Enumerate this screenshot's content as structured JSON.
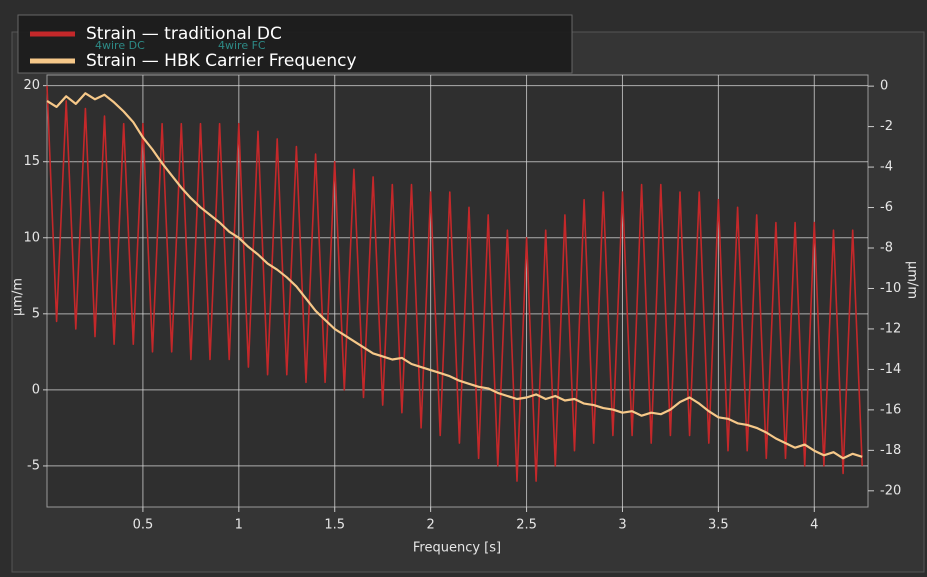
{
  "chart_data": {
    "type": "line",
    "xlabel": "Frequency  [s]",
    "ylabel": "μm/m",
    "y2label": "μm/m",
    "background_labels": [
      "4wire DC",
      "4wire FC"
    ],
    "x": [
      0,
      0.05,
      0.1,
      0.15,
      0.2,
      0.25,
      0.3,
      0.35,
      0.4,
      0.45,
      0.5,
      0.55,
      0.6,
      0.65,
      0.7,
      0.75,
      0.8,
      0.85,
      0.9,
      0.95,
      1.0,
      1.05,
      1.1,
      1.15,
      1.2,
      1.25,
      1.3,
      1.35,
      1.4,
      1.45,
      1.5,
      1.55,
      1.6,
      1.65,
      1.7,
      1.75,
      1.8,
      1.85,
      1.9,
      1.95,
      2.0,
      2.05,
      2.1,
      2.15,
      2.2,
      2.25,
      2.3,
      2.35,
      2.4,
      2.45,
      2.5,
      2.55,
      2.6,
      2.65,
      2.7,
      2.75,
      2.8,
      2.85,
      2.9,
      2.95,
      3.0,
      3.05,
      3.1,
      3.15,
      3.2,
      3.25,
      3.3,
      3.35,
      3.4,
      3.45,
      3.5,
      3.55,
      3.6,
      3.65,
      3.7,
      3.75,
      3.8,
      3.85,
      3.9,
      3.95,
      4.0,
      4.05,
      4.1,
      4.15,
      4.2,
      4.25
    ],
    "series": [
      {
        "name": "Strain — traditional DC",
        "color": "#c4282a",
        "values": [
          20,
          4.5,
          19,
          4,
          18.5,
          3.5,
          18,
          3,
          17.5,
          3,
          17.5,
          2.5,
          17.5,
          2.5,
          17.5,
          2,
          17.5,
          2,
          17.5,
          2,
          17.5,
          1.5,
          17,
          1,
          16.5,
          1,
          16,
          0.5,
          15.5,
          0.5,
          15,
          0,
          14.5,
          -0.5,
          14,
          -1,
          13.5,
          -1.5,
          13.5,
          -2.5,
          13,
          -3,
          13,
          -3.5,
          12,
          -4.5,
          11.5,
          -5,
          10.5,
          -6,
          10,
          -6,
          10.5,
          -5,
          11.5,
          -4,
          12.5,
          -3.5,
          13,
          -3,
          13,
          -3,
          13.5,
          -3.5,
          13.5,
          -3,
          13,
          -3,
          13,
          -3.5,
          12.5,
          -4,
          12,
          -4,
          11.5,
          -4.5,
          11,
          -4.5,
          11,
          -5,
          11,
          -5,
          10.5,
          -5.5,
          10.5,
          -5
        ]
      },
      {
        "name": "Strain — HBK Carrier Frequency",
        "color": "#f6c889",
        "values": [
          19.0,
          18.6,
          19.3,
          18.8,
          19.5,
          19.1,
          19.4,
          18.9,
          18.3,
          17.6,
          16.6,
          15.8,
          14.9,
          14.1,
          13.3,
          12.6,
          12.0,
          11.5,
          11.0,
          10.4,
          10.0,
          9.4,
          8.9,
          8.3,
          7.9,
          7.4,
          6.8,
          6.0,
          5.2,
          4.6,
          4.0,
          3.6,
          3.2,
          2.8,
          2.4,
          2.2,
          2.0,
          2.1,
          1.7,
          1.5,
          1.3,
          1.1,
          0.9,
          0.6,
          0.4,
          0.2,
          0.1,
          -0.2,
          -0.4,
          -0.6,
          -0.5,
          -0.3,
          -0.6,
          -0.4,
          -0.7,
          -0.6,
          -0.9,
          -1.0,
          -1.2,
          -1.3,
          -1.5,
          -1.4,
          -1.7,
          -1.5,
          -1.6,
          -1.3,
          -0.8,
          -0.5,
          -0.9,
          -1.4,
          -1.8,
          -1.9,
          -2.2,
          -2.3,
          -2.5,
          -2.8,
          -3.2,
          -3.5,
          -3.8,
          -3.6,
          -4.0,
          -4.3,
          -4.1,
          -4.5,
          -4.2,
          -4.4
        ]
      }
    ],
    "xlim": [
      0,
      4.28
    ],
    "xticks": [
      0.5,
      1.0,
      1.5,
      2.0,
      2.5,
      3.0,
      3.5,
      4.0
    ],
    "ylim": [
      -7.7,
      20.7
    ],
    "yticks": [
      -5,
      0,
      5,
      10,
      15,
      20
    ],
    "y2lim": [
      -20.8,
      0.55
    ],
    "y2ticks": [
      0,
      -2,
      -4,
      -6,
      -8,
      -10,
      -12,
      -14,
      -16,
      -18,
      -20
    ],
    "grid": true,
    "legend": "top-left"
  }
}
